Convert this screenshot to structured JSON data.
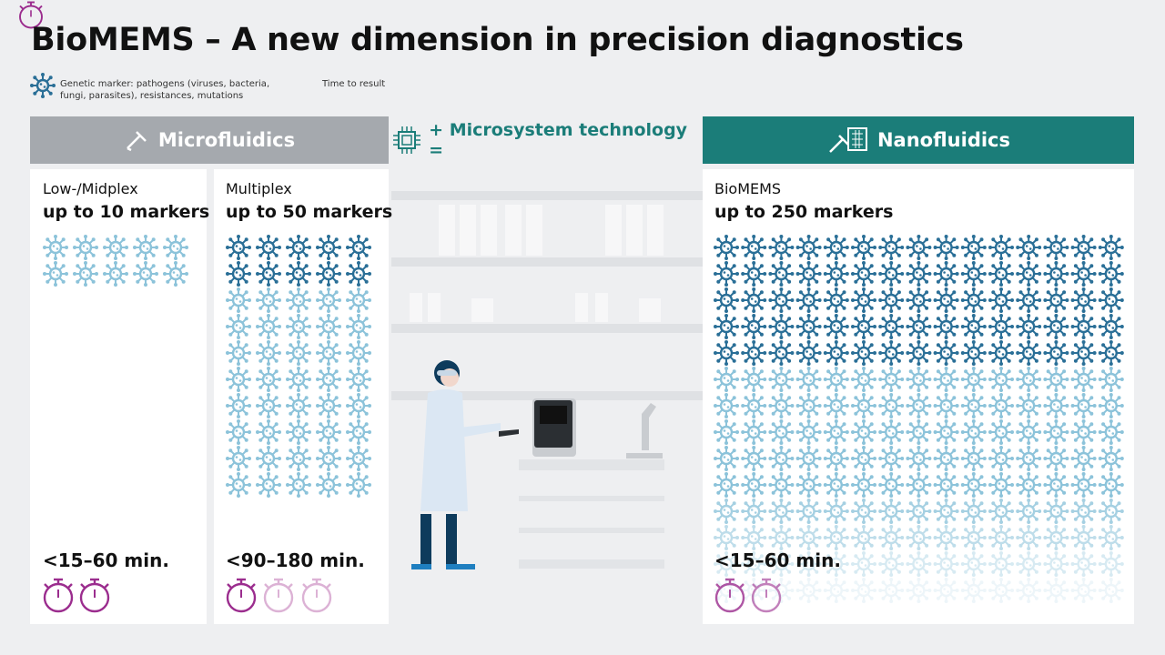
{
  "header": {
    "title": "BioMEMS – A new dimension in precision diagnostics"
  },
  "legend": [
    {
      "label": "Genetic marker: pathogens (viruses, bacteria, fungi, parasites), resistances, mutations"
    },
    {
      "label": "Time to result"
    }
  ],
  "sections": {
    "left": "Microfluidics",
    "middle": "+ Microsystem technology =",
    "right": "Nanofluidics"
  },
  "panels": [
    {
      "label": "Low-/Midplex",
      "markers": "up to 10 markers",
      "time": "<15–60 min."
    },
    {
      "label": "Multiplex",
      "markers": "up to 50 markers",
      "time": "<90–180 min."
    },
    {
      "label": "BioMEMS",
      "markers": "up to 250 markers",
      "time": "<15–60 min."
    }
  ]
}
